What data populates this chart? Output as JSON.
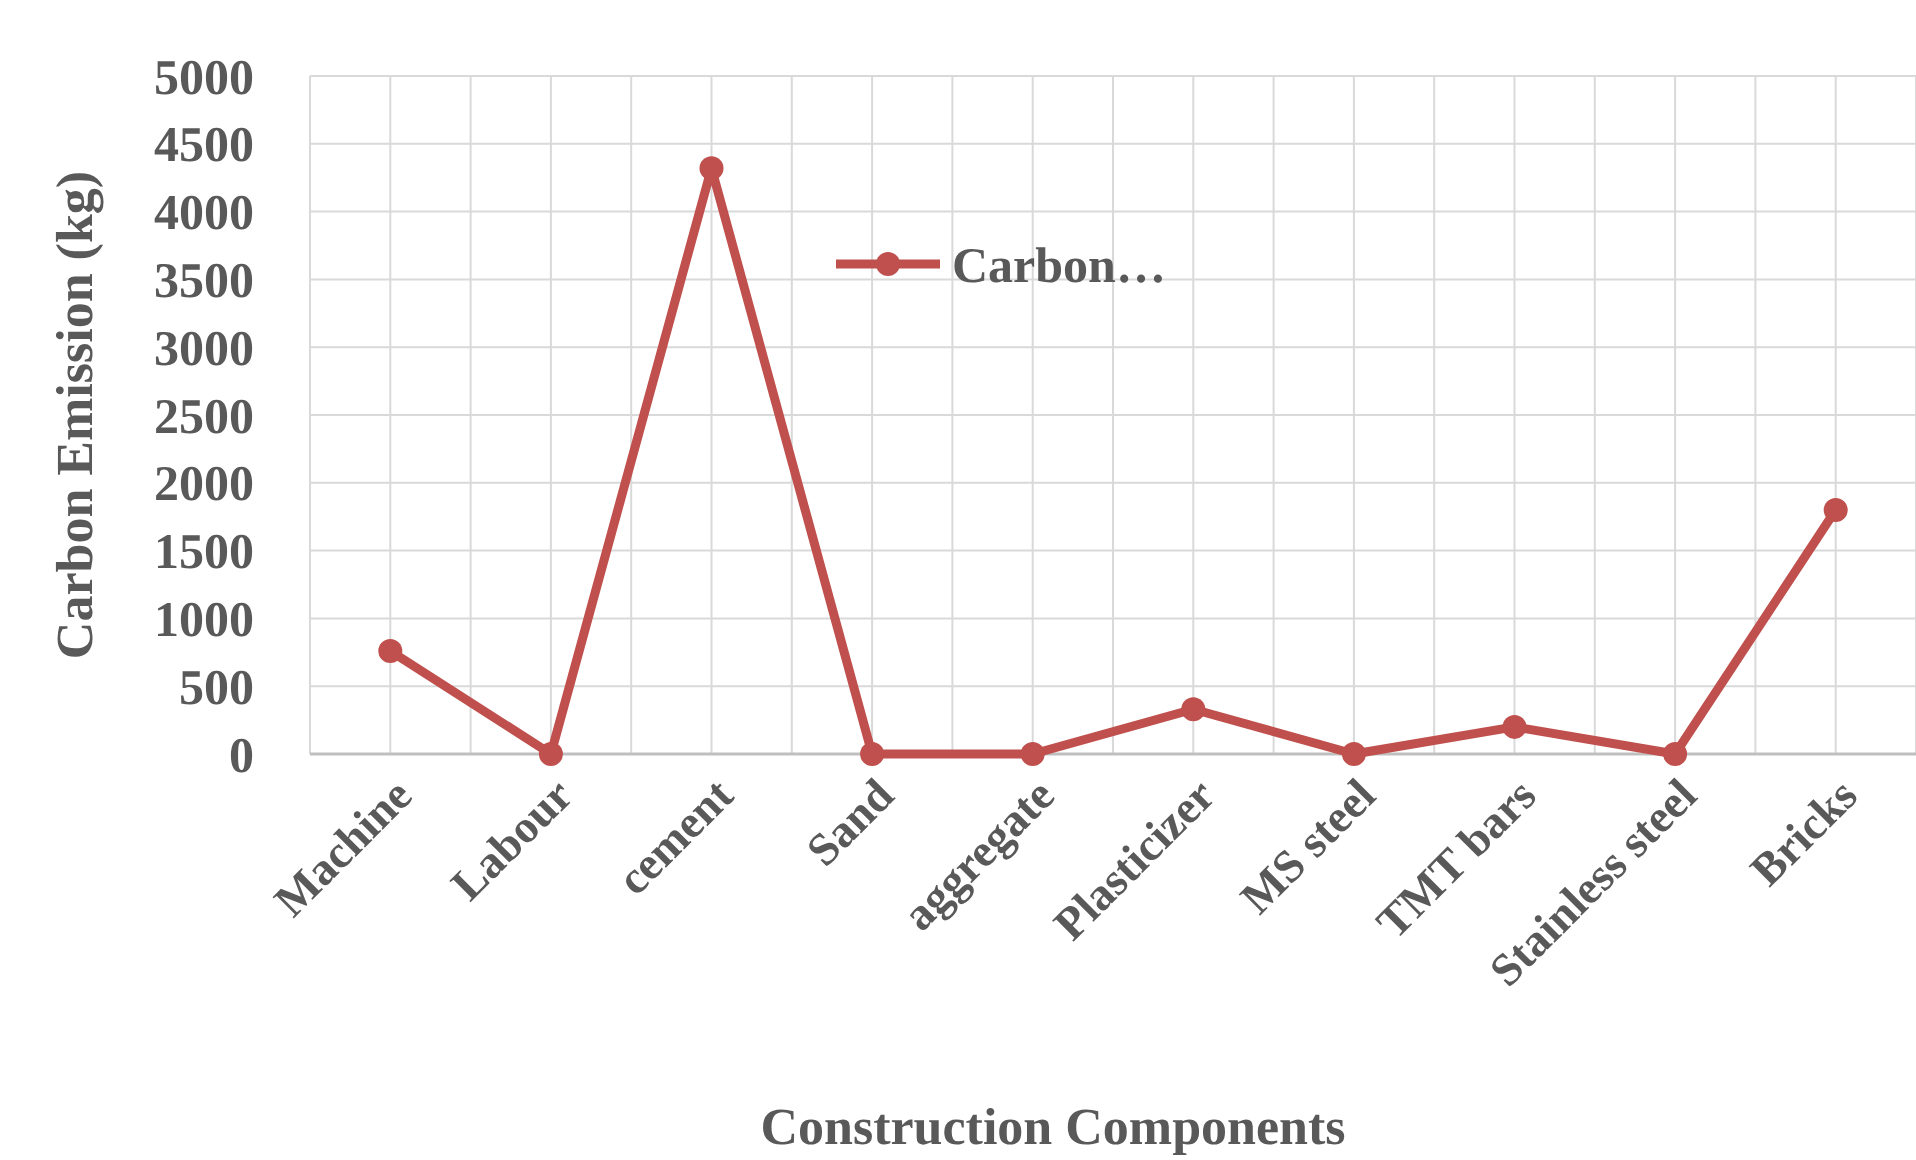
{
  "chart_data": {
    "type": "line",
    "xlabel": "Construction Components",
    "ylabel": "Carbon Emission (kg)",
    "categories": [
      "Machine",
      "Labour",
      "cement",
      "Sand",
      "aggregate",
      "Plasticizer",
      "MS steel",
      "TMT bars",
      "Stainless steel",
      "Bricks"
    ],
    "series": [
      {
        "name": "Carbon…",
        "color": "#c0504d",
        "values": [
          760,
          0,
          4320,
          0,
          0,
          330,
          0,
          200,
          0,
          1800
        ]
      }
    ],
    "ylim": [
      0,
      5000
    ],
    "yticks": [
      0,
      500,
      1000,
      1500,
      2000,
      2500,
      3000,
      3500,
      4000,
      4500,
      5000
    ],
    "grid": true,
    "legend": "top",
    "marker": "circle",
    "line_style": "solid"
  }
}
